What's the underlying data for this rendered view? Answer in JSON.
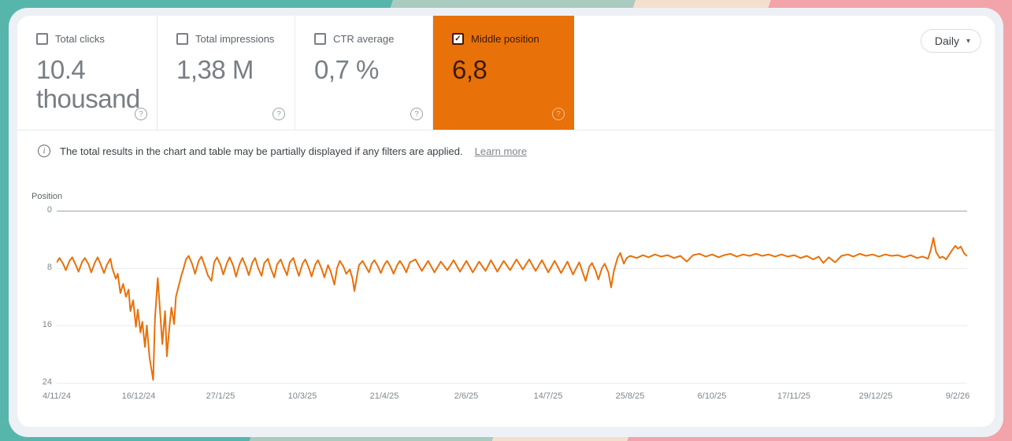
{
  "controls": {
    "granularity": "Daily"
  },
  "icons": {
    "check": "✓",
    "help": "?",
    "info": "i",
    "caret": "▾"
  },
  "tiles": [
    {
      "label": "Total clicks",
      "value": "10.4 thousand",
      "checked": false,
      "selected": false
    },
    {
      "label": "Total impressions",
      "value": "1,38 M",
      "checked": false,
      "selected": false
    },
    {
      "label": "CTR average",
      "value": "0,7 %",
      "checked": false,
      "selected": false
    },
    {
      "label": "Middle position",
      "value": "6,8",
      "checked": true,
      "selected": true
    }
  ],
  "notice": {
    "text": "The total results in the chart and table may be partially displayed if any filters are applied.",
    "link": "Learn more"
  },
  "colors": {
    "accent_orange": "#E8710A",
    "selected_tile_text": "#3E1A00",
    "stripe_teal": "#57B6AC",
    "stripe_sage": "#AACBC0",
    "stripe_beige": "#F4DFCD",
    "stripe_pink": "#F2A4AA",
    "halo_gray": "#EDF1F6"
  },
  "chart_data": {
    "type": "line",
    "title": "",
    "xlabel": "",
    "ylabel": "Position",
    "y_ticks": [
      0,
      8,
      16,
      24
    ],
    "ylim": [
      0,
      25
    ],
    "y_inverted": true,
    "grid": true,
    "legend": "none",
    "line_color": "#E8710A",
    "x_tick_labels": [
      "4/11/24",
      "16/12/24",
      "27/1/25",
      "10/3/25",
      "21/4/25",
      "2/6/25",
      "14/7/25",
      "25/8/25",
      "6/10/25",
      "17/11/25",
      "29/12/25",
      "9/2/26"
    ],
    "series": [
      {
        "name": "Middle position",
        "points": [
          [
            0.0,
            7.2
          ],
          [
            0.003,
            6.6
          ],
          [
            0.007,
            7.4
          ],
          [
            0.01,
            8.3
          ],
          [
            0.014,
            7.0
          ],
          [
            0.017,
            6.5
          ],
          [
            0.021,
            7.6
          ],
          [
            0.024,
            8.5
          ],
          [
            0.028,
            7.1
          ],
          [
            0.031,
            6.6
          ],
          [
            0.035,
            7.5
          ],
          [
            0.038,
            8.6
          ],
          [
            0.042,
            7.2
          ],
          [
            0.045,
            6.5
          ],
          [
            0.048,
            7.4
          ],
          [
            0.052,
            8.7
          ],
          [
            0.055,
            7.6
          ],
          [
            0.059,
            6.7
          ],
          [
            0.061,
            8.0
          ],
          [
            0.065,
            9.5
          ],
          [
            0.067,
            8.8
          ],
          [
            0.07,
            11.5
          ],
          [
            0.073,
            10.2
          ],
          [
            0.076,
            12.0
          ],
          [
            0.079,
            11.0
          ],
          [
            0.081,
            14.0
          ],
          [
            0.084,
            12.5
          ],
          [
            0.087,
            16.2
          ],
          [
            0.089,
            13.8
          ],
          [
            0.092,
            17.0
          ],
          [
            0.094,
            15.5
          ],
          [
            0.097,
            19.0
          ],
          [
            0.099,
            16.0
          ],
          [
            0.102,
            20.5
          ],
          [
            0.106,
            23.6
          ],
          [
            0.108,
            15.0
          ],
          [
            0.111,
            9.4
          ],
          [
            0.113,
            13.0
          ],
          [
            0.116,
            18.6
          ],
          [
            0.119,
            14.0
          ],
          [
            0.121,
            20.3
          ],
          [
            0.124,
            16.0
          ],
          [
            0.126,
            13.5
          ],
          [
            0.129,
            15.8
          ],
          [
            0.131,
            12.0
          ],
          [
            0.134,
            10.5
          ],
          [
            0.137,
            9.0
          ],
          [
            0.139,
            8.2
          ],
          [
            0.142,
            6.8
          ],
          [
            0.145,
            6.3
          ],
          [
            0.149,
            7.5
          ],
          [
            0.152,
            8.8
          ],
          [
            0.156,
            7.0
          ],
          [
            0.159,
            6.4
          ],
          [
            0.163,
            7.8
          ],
          [
            0.166,
            9.0
          ],
          [
            0.17,
            9.8
          ],
          [
            0.173,
            7.2
          ],
          [
            0.176,
            6.5
          ],
          [
            0.18,
            7.6
          ],
          [
            0.183,
            8.9
          ],
          [
            0.187,
            7.3
          ],
          [
            0.19,
            6.5
          ],
          [
            0.194,
            7.7
          ],
          [
            0.197,
            9.2
          ],
          [
            0.201,
            7.4
          ],
          [
            0.204,
            6.6
          ],
          [
            0.208,
            7.8
          ],
          [
            0.211,
            9.0
          ],
          [
            0.215,
            7.2
          ],
          [
            0.218,
            6.6
          ],
          [
            0.221,
            7.9
          ],
          [
            0.225,
            9.1
          ],
          [
            0.228,
            7.3
          ],
          [
            0.232,
            6.7
          ],
          [
            0.235,
            8.0
          ],
          [
            0.239,
            9.3
          ],
          [
            0.242,
            7.5
          ],
          [
            0.246,
            6.8
          ],
          [
            0.249,
            7.8
          ],
          [
            0.253,
            9.0
          ],
          [
            0.256,
            7.2
          ],
          [
            0.26,
            6.6
          ],
          [
            0.263,
            7.9
          ],
          [
            0.266,
            9.1
          ],
          [
            0.27,
            7.4
          ],
          [
            0.273,
            6.8
          ],
          [
            0.277,
            8.0
          ],
          [
            0.28,
            9.2
          ],
          [
            0.284,
            7.5
          ],
          [
            0.287,
            6.9
          ],
          [
            0.291,
            8.1
          ],
          [
            0.294,
            9.3
          ],
          [
            0.298,
            7.6
          ],
          [
            0.301,
            8.5
          ],
          [
            0.305,
            10.3
          ],
          [
            0.308,
            8.0
          ],
          [
            0.311,
            7.0
          ],
          [
            0.315,
            7.8
          ],
          [
            0.318,
            8.8
          ],
          [
            0.322,
            8.2
          ],
          [
            0.325,
            9.5
          ],
          [
            0.327,
            11.2
          ],
          [
            0.33,
            9.0
          ],
          [
            0.332,
            7.6
          ],
          [
            0.336,
            7.0
          ],
          [
            0.339,
            7.7
          ],
          [
            0.343,
            8.6
          ],
          [
            0.346,
            7.4
          ],
          [
            0.349,
            6.9
          ],
          [
            0.353,
            7.8
          ],
          [
            0.356,
            8.7
          ],
          [
            0.36,
            7.5
          ],
          [
            0.363,
            7.0
          ],
          [
            0.367,
            7.9
          ],
          [
            0.37,
            8.8
          ],
          [
            0.374,
            7.6
          ],
          [
            0.377,
            7.0
          ],
          [
            0.381,
            7.8
          ],
          [
            0.384,
            8.6
          ],
          [
            0.388,
            7.2
          ],
          [
            0.394,
            6.8
          ],
          [
            0.401,
            8.4
          ],
          [
            0.408,
            7.0
          ],
          [
            0.415,
            8.6
          ],
          [
            0.422,
            7.1
          ],
          [
            0.429,
            8.3
          ],
          [
            0.436,
            6.9
          ],
          [
            0.443,
            8.5
          ],
          [
            0.45,
            7.0
          ],
          [
            0.457,
            8.6
          ],
          [
            0.464,
            7.1
          ],
          [
            0.471,
            8.4
          ],
          [
            0.477,
            6.9
          ],
          [
            0.484,
            8.5
          ],
          [
            0.491,
            7.0
          ],
          [
            0.498,
            8.3
          ],
          [
            0.505,
            6.8
          ],
          [
            0.512,
            8.2
          ],
          [
            0.519,
            6.8
          ],
          [
            0.526,
            8.4
          ],
          [
            0.533,
            6.9
          ],
          [
            0.54,
            8.6
          ],
          [
            0.547,
            7.0
          ],
          [
            0.554,
            8.7
          ],
          [
            0.561,
            7.1
          ],
          [
            0.567,
            8.9
          ],
          [
            0.574,
            7.2
          ],
          [
            0.581,
            9.8
          ],
          [
            0.585,
            7.8
          ],
          [
            0.588,
            7.3
          ],
          [
            0.592,
            8.4
          ],
          [
            0.595,
            9.6
          ],
          [
            0.599,
            8.0
          ],
          [
            0.602,
            7.4
          ],
          [
            0.606,
            8.6
          ],
          [
            0.609,
            10.7
          ],
          [
            0.612,
            8.4
          ],
          [
            0.616,
            6.6
          ],
          [
            0.619,
            5.9
          ],
          [
            0.623,
            7.4
          ],
          [
            0.626,
            6.6
          ],
          [
            0.63,
            6.3
          ],
          [
            0.637,
            6.6
          ],
          [
            0.644,
            6.2
          ],
          [
            0.65,
            6.5
          ],
          [
            0.657,
            6.1
          ],
          [
            0.664,
            6.4
          ],
          [
            0.671,
            6.2
          ],
          [
            0.678,
            6.6
          ],
          [
            0.685,
            6.3
          ],
          [
            0.692,
            7.1
          ],
          [
            0.699,
            6.2
          ],
          [
            0.706,
            6.0
          ],
          [
            0.713,
            6.4
          ],
          [
            0.72,
            6.1
          ],
          [
            0.727,
            6.5
          ],
          [
            0.733,
            6.2
          ],
          [
            0.74,
            6.0
          ],
          [
            0.747,
            6.4
          ],
          [
            0.754,
            6.1
          ],
          [
            0.761,
            6.3
          ],
          [
            0.768,
            6.0
          ],
          [
            0.775,
            6.3
          ],
          [
            0.782,
            6.1
          ],
          [
            0.789,
            6.4
          ],
          [
            0.796,
            6.1
          ],
          [
            0.803,
            6.4
          ],
          [
            0.81,
            6.2
          ],
          [
            0.817,
            6.6
          ],
          [
            0.824,
            6.3
          ],
          [
            0.831,
            6.8
          ],
          [
            0.837,
            6.4
          ],
          [
            0.842,
            7.3
          ],
          [
            0.848,
            6.5
          ],
          [
            0.855,
            7.2
          ],
          [
            0.862,
            6.3
          ],
          [
            0.869,
            6.1
          ],
          [
            0.875,
            6.4
          ],
          [
            0.882,
            6.0
          ],
          [
            0.889,
            6.3
          ],
          [
            0.896,
            6.1
          ],
          [
            0.903,
            6.4
          ],
          [
            0.91,
            6.1
          ],
          [
            0.917,
            6.3
          ],
          [
            0.924,
            6.2
          ],
          [
            0.931,
            6.5
          ],
          [
            0.938,
            6.2
          ],
          [
            0.945,
            6.6
          ],
          [
            0.951,
            6.4
          ],
          [
            0.957,
            6.7
          ],
          [
            0.96,
            5.5
          ],
          [
            0.963,
            3.8
          ],
          [
            0.966,
            5.8
          ],
          [
            0.97,
            6.6
          ],
          [
            0.973,
            6.4
          ],
          [
            0.977,
            6.8
          ],
          [
            0.98,
            6.2
          ],
          [
            0.983,
            5.6
          ],
          [
            0.987,
            4.9
          ],
          [
            0.99,
            5.3
          ],
          [
            0.993,
            5.0
          ],
          [
            0.997,
            6.0
          ],
          [
            1.0,
            6.3
          ]
        ]
      }
    ]
  }
}
